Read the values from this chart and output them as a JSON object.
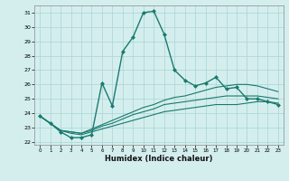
{
  "xlabel": "Humidex (Indice chaleur)",
  "background_color": "#d4eeee",
  "grid_color": "#b0d8d8",
  "line_color": "#1a7a6e",
  "xlim": [
    -0.5,
    23.5
  ],
  "ylim": [
    21.8,
    31.5
  ],
  "yticks": [
    22,
    23,
    24,
    25,
    26,
    27,
    28,
    29,
    30,
    31
  ],
  "xticks": [
    0,
    1,
    2,
    3,
    4,
    5,
    6,
    7,
    8,
    9,
    10,
    11,
    12,
    13,
    14,
    15,
    16,
    17,
    18,
    19,
    20,
    21,
    22,
    23
  ],
  "line1_x": [
    0,
    1,
    2,
    3,
    4,
    5,
    6,
    7,
    8,
    9,
    10,
    11,
    12,
    13,
    14,
    15,
    16,
    17,
    18,
    19,
    20,
    21,
    22,
    23
  ],
  "line1_y": [
    23.8,
    23.3,
    22.7,
    22.3,
    22.3,
    22.5,
    26.1,
    24.5,
    28.3,
    29.3,
    31.0,
    31.1,
    29.5,
    27.0,
    26.3,
    25.9,
    26.1,
    26.5,
    25.7,
    25.8,
    25.0,
    25.0,
    24.8,
    24.6
  ],
  "line2_x": [
    0,
    1,
    2,
    3,
    4,
    5,
    6,
    7,
    8,
    9,
    10,
    11,
    12,
    13,
    14,
    15,
    16,
    17,
    18,
    19,
    20,
    21,
    22,
    23
  ],
  "line2_y": [
    23.8,
    23.3,
    22.8,
    22.6,
    22.5,
    22.7,
    22.9,
    23.1,
    23.3,
    23.5,
    23.7,
    23.9,
    24.1,
    24.2,
    24.3,
    24.4,
    24.5,
    24.6,
    24.6,
    24.6,
    24.7,
    24.8,
    24.8,
    24.7
  ],
  "line3_x": [
    0,
    1,
    2,
    3,
    4,
    5,
    6,
    7,
    8,
    9,
    10,
    11,
    12,
    13,
    14,
    15,
    16,
    17,
    18,
    19,
    20,
    21,
    22,
    23
  ],
  "line3_y": [
    23.8,
    23.3,
    22.8,
    22.7,
    22.6,
    22.8,
    23.1,
    23.3,
    23.6,
    23.9,
    24.1,
    24.3,
    24.6,
    24.7,
    24.8,
    24.9,
    25.0,
    25.1,
    25.2,
    25.2,
    25.2,
    25.2,
    25.1,
    25.0
  ],
  "line4_x": [
    0,
    1,
    2,
    3,
    4,
    5,
    6,
    7,
    8,
    9,
    10,
    11,
    12,
    13,
    14,
    15,
    16,
    17,
    18,
    19,
    20,
    21,
    22,
    23
  ],
  "line4_y": [
    23.8,
    23.3,
    22.8,
    22.7,
    22.6,
    22.9,
    23.2,
    23.5,
    23.8,
    24.1,
    24.4,
    24.6,
    24.9,
    25.1,
    25.2,
    25.4,
    25.6,
    25.8,
    25.9,
    26.0,
    26.0,
    25.9,
    25.7,
    25.5
  ]
}
